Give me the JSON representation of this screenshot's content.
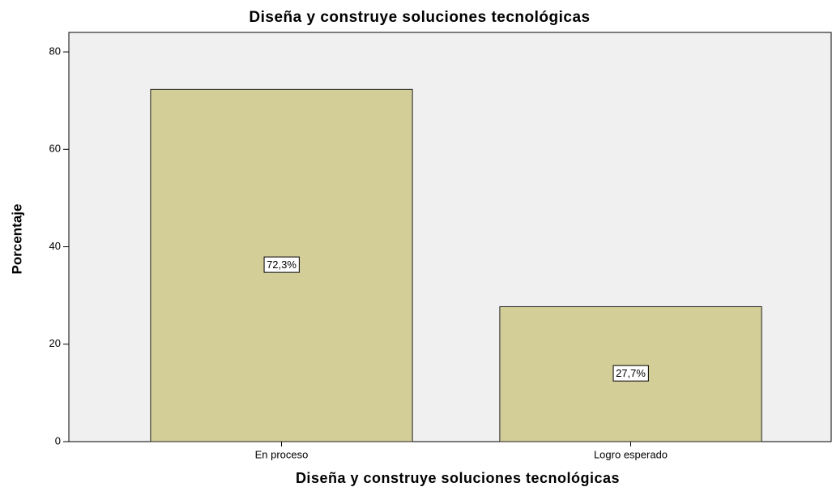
{
  "chart_data": {
    "type": "bar",
    "title": "Diseña y construye soluciones tecnológicas",
    "x_label": "Diseña y construye soluciones tecnológicas",
    "y_label": "Porcentaje",
    "categories": [
      "En proceso",
      "Logro esperado"
    ],
    "values": [
      72.3,
      27.7
    ],
    "value_labels": [
      "72,3%",
      "27,7%"
    ],
    "color": "#d3cd98",
    "ylim": [
      0,
      84
    ],
    "yticks": [
      0,
      20,
      40,
      60,
      80
    ],
    "grid": false
  }
}
